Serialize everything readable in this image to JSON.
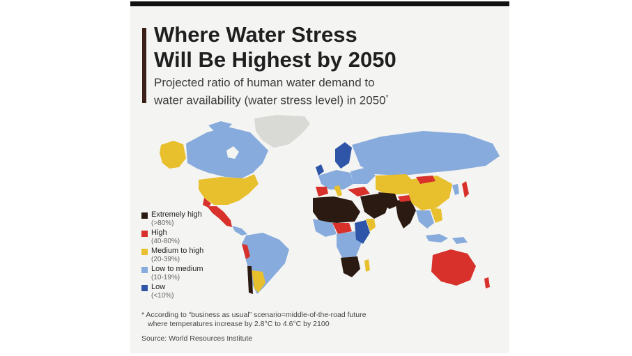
{
  "title_lines": [
    "Where Water Stress",
    "Will Be Highest by 2050"
  ],
  "subtitle_lines": [
    "Projected ratio of human water demand to",
    "water availability (water stress level) in 2050"
  ],
  "subtitle_marker": "*",
  "colors": {
    "extremely_high": "#2b1a12",
    "high": "#d8312b",
    "medium_to_high": "#e8c02e",
    "low_to_medium": "#86abdc",
    "low": "#2e55a8",
    "no_data": "#d9d9d6",
    "background": "#f4f4f2",
    "accent_bar": "#3a2016"
  },
  "legend": [
    {
      "label": "Extremely high",
      "range": "(>80%)",
      "color": "#2b1a12"
    },
    {
      "label": "High",
      "range": "(40-80%)",
      "color": "#d8312b"
    },
    {
      "label": "Medium to high",
      "range": "(20-39%)",
      "color": "#e8c02e"
    },
    {
      "label": "Low to medium",
      "range": "(10-19%)",
      "color": "#86abdc"
    },
    {
      "label": "Low",
      "range": "(<10%)",
      "color": "#2e55a8"
    }
  ],
  "footnote_lines": [
    "* According to “business as usual” scenario=middle-of-the-road future",
    "where temperatures increase by 2.8°C to 4.6°C by 2100"
  ],
  "source": "Source: World Resources Institute"
}
